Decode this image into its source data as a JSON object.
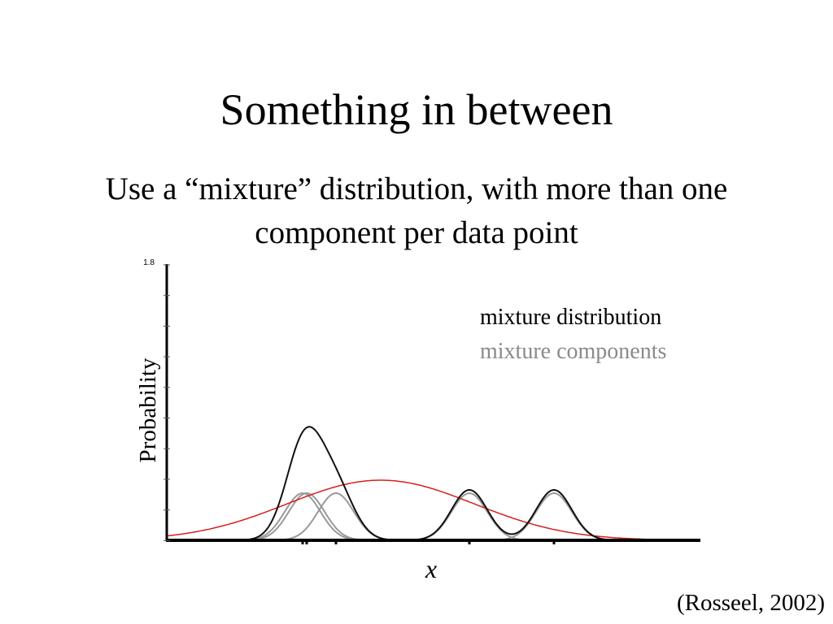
{
  "slide": {
    "title": "Something in between",
    "subtitle": "Use a “mixture” distribution, with more than one component per data point",
    "plot": {
      "y_tick": "1.8",
      "y_label": "Probability",
      "x_label": "x",
      "legend": [
        "mixture distribution",
        "mixture components"
      ]
    },
    "citation": "(Rosseel, 2002)"
  }
}
